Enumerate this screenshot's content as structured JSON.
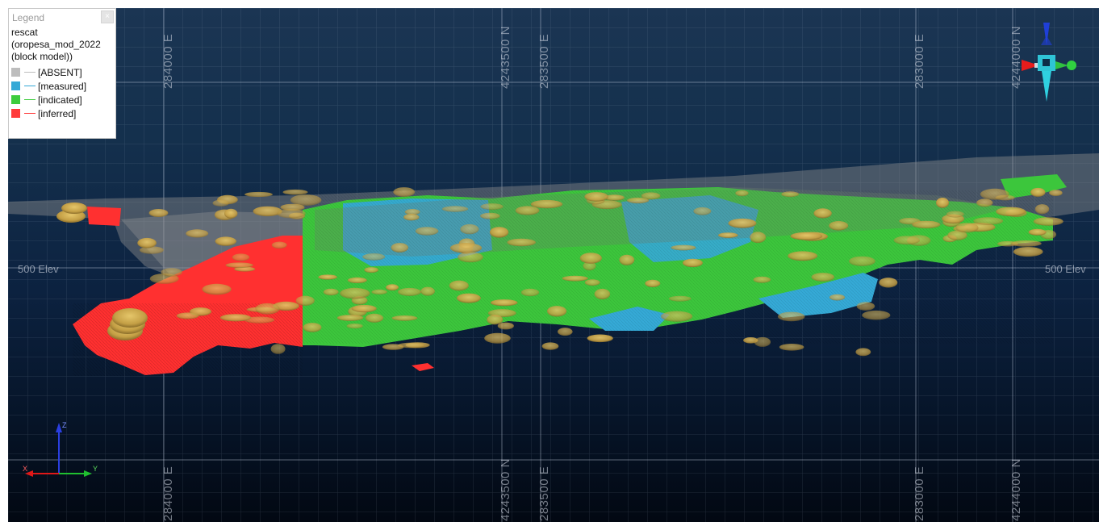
{
  "legend": {
    "title": "Legend",
    "close_label": "×",
    "field": "rescat",
    "source": "(oropesa_mod_2022",
    "source_type": "(block model))",
    "items": [
      {
        "label": "[ABSENT]",
        "color": "#bdbdbd"
      },
      {
        "label": "[measured]",
        "color": "#35a9d6"
      },
      {
        "label": "[indicated]",
        "color": "#3dcc3d"
      },
      {
        "label": "[inferred]",
        "color": "#ff3b3b"
      }
    ]
  },
  "grid_labels": {
    "top": [
      "284000 E",
      "4243500 N",
      "283500 E",
      "283000 E",
      "4244000 N"
    ],
    "bottom": [
      "284000 E",
      "4243500 N",
      "283500 E",
      "283000 E",
      "4244000 N"
    ]
  },
  "elevation": {
    "left": "500 Elev",
    "right": "500 Elev"
  },
  "axes": {
    "z": "Z",
    "x": "X",
    "y": "Y"
  },
  "colors": {
    "background_top": "#1b3553",
    "background_bottom": "#020812",
    "pit_surface": "#8c8c8c",
    "drillhole": "#c9a64a"
  }
}
